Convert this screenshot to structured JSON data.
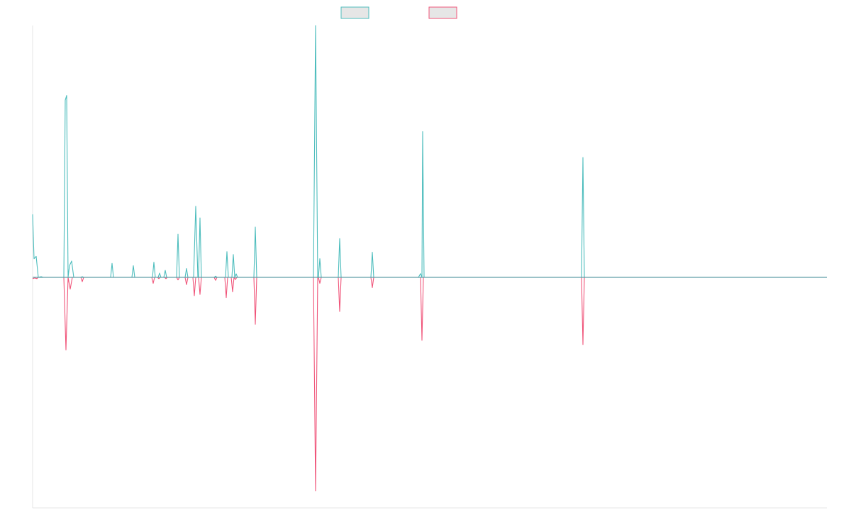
{
  "chart_data": {
    "type": "line",
    "title": "",
    "xlabel": "",
    "ylabel": "",
    "grid": false,
    "legend_position": "top-center",
    "colors": {
      "series_a": "#4dbdbd",
      "series_b": "#f0557a",
      "baseline": "#5f9ea8",
      "axis": "#e6e6e6",
      "legend_fill": "#e6e6e6"
    },
    "x_range": [
      0,
      1120
    ],
    "y_range": [
      -108,
      108
    ],
    "series": [
      {
        "name": "",
        "color": "#4dbdbd",
        "points": [
          [
            0,
            27
          ],
          [
            2,
            8
          ],
          [
            5,
            9
          ],
          [
            8,
            0
          ],
          [
            12,
            0.3
          ],
          [
            15,
            0
          ],
          [
            44,
            0
          ],
          [
            46,
            76
          ],
          [
            48,
            78
          ],
          [
            50,
            0
          ],
          [
            52,
            5
          ],
          [
            55,
            7
          ],
          [
            58,
            0
          ],
          [
            68,
            0
          ],
          [
            70,
            0.3
          ],
          [
            72,
            0
          ],
          [
            110,
            0
          ],
          [
            112,
            6
          ],
          [
            114,
            0
          ],
          [
            140,
            0
          ],
          [
            142,
            5
          ],
          [
            144,
            0
          ],
          [
            169,
            0
          ],
          [
            171,
            6.5
          ],
          [
            173,
            0
          ],
          [
            177,
            0
          ],
          [
            179,
            1.8
          ],
          [
            181,
            0
          ],
          [
            185,
            0
          ],
          [
            187,
            3
          ],
          [
            189,
            0
          ],
          [
            203,
            0
          ],
          [
            205,
            18.5
          ],
          [
            207,
            0
          ],
          [
            215,
            0
          ],
          [
            217,
            3.8
          ],
          [
            219,
            0
          ],
          [
            227,
            0
          ],
          [
            230,
            30.5
          ],
          [
            233,
            0
          ],
          [
            234,
            0
          ],
          [
            236,
            25.5
          ],
          [
            238,
            0
          ],
          [
            256,
            0
          ],
          [
            258,
            0.5
          ],
          [
            260,
            0
          ],
          [
            272,
            0
          ],
          [
            274,
            11
          ],
          [
            276,
            0
          ],
          [
            281,
            0
          ],
          [
            283,
            9.8
          ],
          [
            285,
            0
          ],
          [
            287,
            1.5
          ],
          [
            289,
            0
          ],
          [
            312,
            0
          ],
          [
            314,
            21.6
          ],
          [
            316,
            0
          ],
          [
            396,
            0
          ],
          [
            399,
            108
          ],
          [
            402,
            0
          ],
          [
            403,
            0
          ],
          [
            405,
            8
          ],
          [
            407,
            0
          ],
          [
            431,
            0
          ],
          [
            433,
            16.6
          ],
          [
            435,
            0
          ],
          [
            477,
            0
          ],
          [
            479,
            10.8
          ],
          [
            481,
            0
          ],
          [
            544,
            0
          ],
          [
            547,
            1.6
          ],
          [
            549,
            0
          ],
          [
            550,
            62.5
          ],
          [
            552,
            0
          ],
          [
            774,
            0
          ],
          [
            776,
            51.4
          ],
          [
            778,
            0
          ],
          [
            1120,
            0
          ]
        ]
      },
      {
        "name": "",
        "color": "#f0557a",
        "points": [
          [
            0,
            -0.6
          ],
          [
            3,
            -0.3
          ],
          [
            6,
            -0.6
          ],
          [
            8,
            0
          ],
          [
            44,
            0
          ],
          [
            47,
            -34
          ],
          [
            50,
            0
          ],
          [
            53,
            -5.5
          ],
          [
            56,
            0
          ],
          [
            68,
            0
          ],
          [
            70,
            -2
          ],
          [
            72,
            0
          ],
          [
            168,
            0
          ],
          [
            170,
            -2.8
          ],
          [
            172,
            0
          ],
          [
            176,
            0
          ],
          [
            178,
            -0.6
          ],
          [
            180,
            0
          ],
          [
            186,
            0
          ],
          [
            188,
            -0.6
          ],
          [
            190,
            0
          ],
          [
            203,
            0
          ],
          [
            205,
            -1.2
          ],
          [
            207,
            0
          ],
          [
            215,
            0
          ],
          [
            217,
            -3.4
          ],
          [
            219,
            0
          ],
          [
            226,
            0
          ],
          [
            228,
            -8.6
          ],
          [
            230,
            0
          ],
          [
            234,
            0
          ],
          [
            236,
            -8
          ],
          [
            238,
            0
          ],
          [
            256,
            0
          ],
          [
            258,
            -1.4
          ],
          [
            260,
            0
          ],
          [
            271,
            0
          ],
          [
            273,
            -9.5
          ],
          [
            275,
            0
          ],
          [
            280,
            0
          ],
          [
            282,
            -6.8
          ],
          [
            284,
            0
          ],
          [
            286,
            -1
          ],
          [
            288,
            0
          ],
          [
            312,
            0
          ],
          [
            314,
            -22
          ],
          [
            316,
            0
          ],
          [
            396,
            0
          ],
          [
            399,
            -100
          ],
          [
            402,
            0
          ],
          [
            403,
            0
          ],
          [
            405,
            -2.8
          ],
          [
            407,
            0
          ],
          [
            431,
            0
          ],
          [
            433,
            -16
          ],
          [
            435,
            0
          ],
          [
            477,
            0
          ],
          [
            479,
            -4.8
          ],
          [
            481,
            0
          ],
          [
            547,
            0
          ],
          [
            549,
            -29.5
          ],
          [
            551,
            0
          ],
          [
            774,
            0
          ],
          [
            776,
            -31.5
          ],
          [
            778,
            0
          ],
          [
            1120,
            0
          ]
        ]
      }
    ]
  }
}
